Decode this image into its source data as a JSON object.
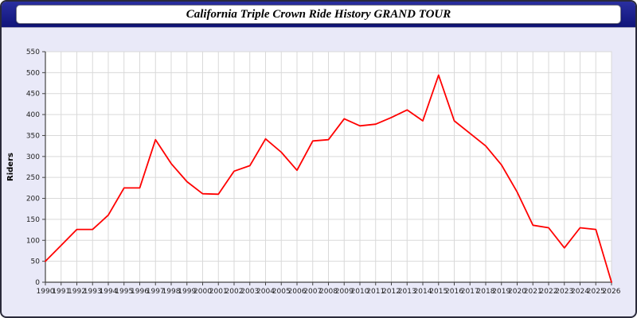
{
  "header": {
    "title": "California Triple Crown Ride History GRAND TOUR"
  },
  "colors": {
    "page_bg": "#e9e9f8",
    "titlebar_bg": "#141a8c",
    "title_box_bg": "#ffffff",
    "plot_bg": "#ffffff",
    "grid_color": "#d9d9d9",
    "axis_color": "#444444",
    "tick_label_color": "#222222",
    "line_color": "#ff0000"
  },
  "chart_data": {
    "type": "line",
    "title": "California Triple Crown Ride History GRAND TOUR",
    "xlabel": "",
    "ylabel": "Riders",
    "ylim": [
      0,
      550
    ],
    "ytick_step": 50,
    "grid": true,
    "legend_position": "none",
    "x": [
      1990,
      1991,
      1992,
      1993,
      1994,
      1995,
      1996,
      1997,
      1998,
      1999,
      2000,
      2001,
      2002,
      2003,
      2004,
      2005,
      2006,
      2007,
      2008,
      2009,
      2010,
      2011,
      2012,
      2013,
      2014,
      2015,
      2016,
      2017,
      2018,
      2019,
      2020,
      2021,
      2022,
      2023,
      2024,
      2025,
      2026
    ],
    "values": [
      50,
      88,
      126,
      126,
      160,
      225,
      225,
      340,
      283,
      240,
      211,
      210,
      265,
      278,
      342,
      310,
      267,
      337,
      340,
      390,
      373,
      377,
      393,
      411,
      385,
      494,
      385,
      355,
      325,
      280,
      215,
      136,
      130,
      82,
      130,
      126,
      0
    ],
    "series": [
      {
        "name": "Riders",
        "color": "#ff0000"
      }
    ]
  }
}
